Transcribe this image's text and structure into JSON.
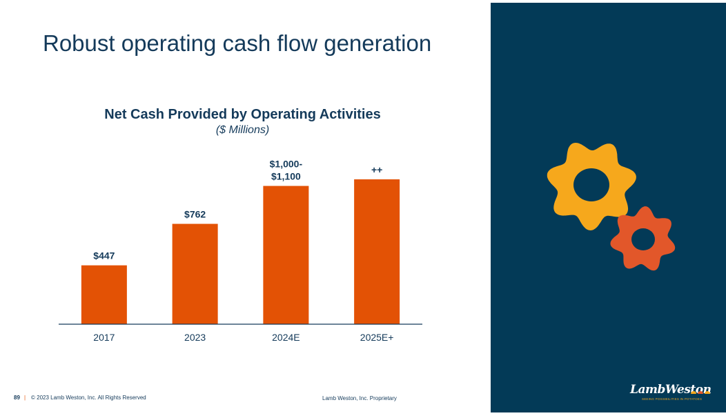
{
  "slide": {
    "title": "Robust operating cash flow generation"
  },
  "chart_data": {
    "type": "bar",
    "title": "Net Cash Provided by Operating Activities",
    "subtitle": "($ Millions)",
    "categories": [
      "2017",
      "2023",
      "2024E",
      "2025E+"
    ],
    "values": [
      447,
      762,
      1050,
      1100
    ],
    "data_labels": [
      [
        "$447"
      ],
      [
        "$762"
      ],
      [
        "$1,000-",
        "$1,100"
      ],
      [
        "++"
      ]
    ],
    "ylim": [
      0,
      1100
    ],
    "xlabel": "",
    "ylabel": "",
    "grid": false,
    "legend": "none",
    "bar_color": "#e35205"
  },
  "footer": {
    "page_number": "89",
    "separator": "|",
    "copyright": "© 2023 Lamb Weston, Inc.  All Rights Reserved",
    "proprietary": "Lamb Weston, Inc. Proprietary"
  },
  "logo": {
    "name": "LambWeston",
    "tagline": "SEEING POSSIBILITIES IN POTATOES"
  },
  "colors": {
    "navy": "#033a57",
    "orange": "#e35205",
    "gold": "#f6a81c",
    "gear_orange": "#e2572a"
  }
}
